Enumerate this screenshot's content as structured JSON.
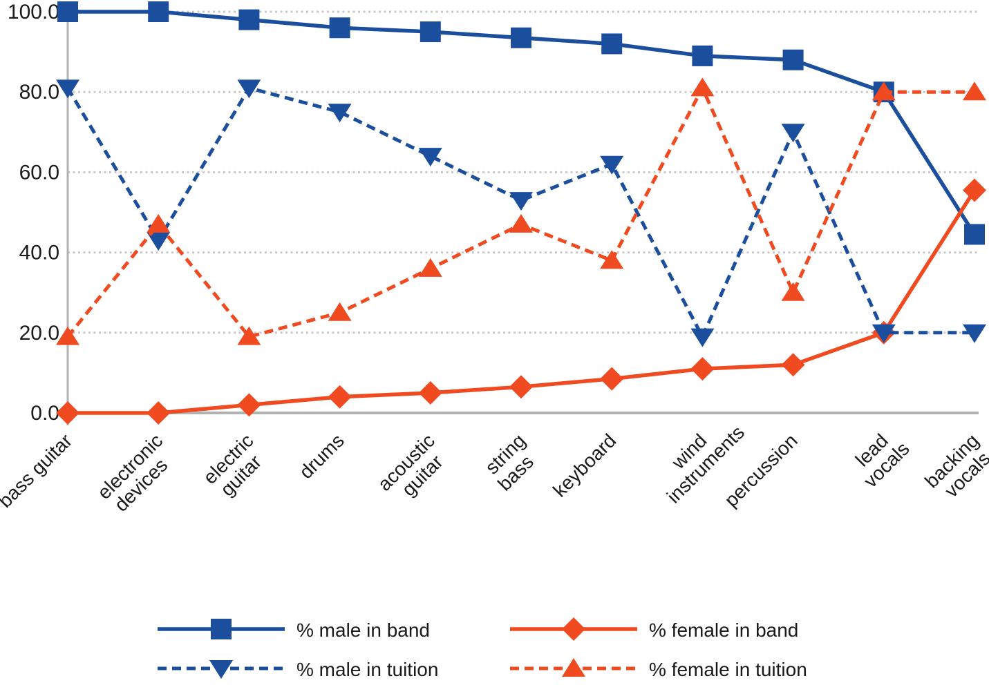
{
  "chart_data": {
    "type": "line",
    "title": "",
    "categories": [
      "bass guitar",
      "electronic devices",
      "electric guitar",
      "drums",
      "acoustic guitar",
      "string bass",
      "keyboard",
      "wind instruments",
      "percussion",
      "lead vocals",
      "backing vocals"
    ],
    "category_label_lines": [
      [
        "bass guitar"
      ],
      [
        "electronic",
        "devices"
      ],
      [
        "electric",
        "guitar"
      ],
      [
        "drums"
      ],
      [
        "acoustic",
        "guitar"
      ],
      [
        "string",
        "bass"
      ],
      [
        "keyboard"
      ],
      [
        "wind",
        "instruments"
      ],
      [
        "percussion"
      ],
      [
        "lead",
        "vocals"
      ],
      [
        "backing",
        "vocals"
      ]
    ],
    "series": [
      {
        "name": "% male in band",
        "color": "#1b4f9d",
        "line_style": "solid",
        "marker": "square",
        "values": [
          100,
          100,
          98,
          96,
          95,
          93.5,
          92,
          89,
          88,
          80,
          44.5
        ]
      },
      {
        "name": "% female in band",
        "color": "#f04a21",
        "line_style": "solid",
        "marker": "diamond",
        "values": [
          0,
          0,
          2,
          4,
          5,
          6.5,
          8.5,
          11,
          12,
          20,
          55.5
        ]
      },
      {
        "name": "% male in tuition",
        "color": "#1b4f9d",
        "line_style": "dashed",
        "marker": "triangle-down",
        "values": [
          81,
          43,
          81,
          75,
          64,
          53,
          62,
          19,
          70,
          20,
          20
        ]
      },
      {
        "name": "% female in tuition",
        "color": "#f04a21",
        "line_style": "dashed",
        "marker": "triangle-up",
        "values": [
          19,
          47,
          19,
          25,
          36,
          47,
          38,
          81,
          30,
          80,
          80
        ]
      }
    ],
    "ylim": [
      0,
      100
    ],
    "yticks": [
      0,
      20,
      40,
      60,
      80,
      100
    ],
    "ytick_labels": [
      "0.0",
      "20.0",
      "40.0",
      "60.0",
      "80.0",
      "100.0"
    ],
    "grid": "horizontal dotted gridlines at 20/40/60/80/100",
    "legend_position": "bottom",
    "axis_color": "#b2b2b2",
    "grid_color": "#c9c9c9",
    "text_color": "#1a1a1a"
  }
}
